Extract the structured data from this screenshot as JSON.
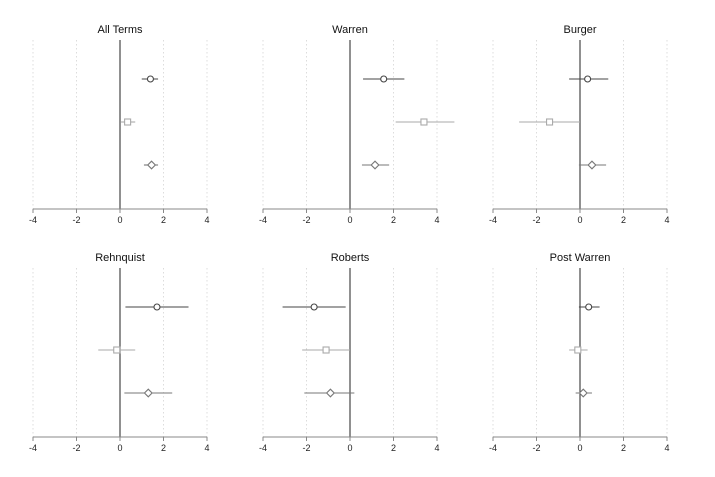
{
  "chart_data": [
    {
      "type": "scatter",
      "title": "All Terms",
      "xlim": [
        -4,
        4
      ],
      "xticks": [
        -4,
        -2,
        0,
        2,
        4
      ],
      "reference_line": 0,
      "grid": "vertical dotted",
      "series": [
        {
          "marker": "circle",
          "color": "#444444",
          "estimate": 1.4,
          "ci": [
            1.0,
            1.75
          ]
        },
        {
          "marker": "square",
          "color": "#aaaaaa",
          "estimate": 0.35,
          "ci": [
            0.05,
            0.7
          ]
        },
        {
          "marker": "diamond",
          "color": "#777777",
          "estimate": 1.45,
          "ci": [
            1.1,
            1.75
          ]
        }
      ]
    },
    {
      "type": "scatter",
      "title": "Warren",
      "xlim": [
        -4,
        4
      ],
      "xticks": [
        -4,
        -2,
        0,
        2,
        4
      ],
      "reference_line": 0,
      "grid": "vertical dotted",
      "series": [
        {
          "marker": "circle",
          "color": "#444444",
          "estimate": 1.55,
          "ci": [
            0.6,
            2.5
          ]
        },
        {
          "marker": "square",
          "color": "#aaaaaa",
          "estimate": 3.4,
          "ci": [
            2.1,
            4.8
          ]
        },
        {
          "marker": "diamond",
          "color": "#777777",
          "estimate": 1.15,
          "ci": [
            0.55,
            1.8
          ]
        }
      ]
    },
    {
      "type": "scatter",
      "title": "Burger",
      "xlim": [
        -4,
        4
      ],
      "xticks": [
        -4,
        -2,
        0,
        2,
        4
      ],
      "reference_line": 0,
      "grid": "vertical dotted",
      "series": [
        {
          "marker": "circle",
          "color": "#444444",
          "estimate": 0.35,
          "ci": [
            -0.5,
            1.3
          ]
        },
        {
          "marker": "square",
          "color": "#aaaaaa",
          "estimate": -1.4,
          "ci": [
            -2.8,
            0.0
          ]
        },
        {
          "marker": "diamond",
          "color": "#777777",
          "estimate": 0.55,
          "ci": [
            -0.05,
            1.2
          ]
        }
      ]
    },
    {
      "type": "scatter",
      "title": "Rehnquist",
      "xlim": [
        -4,
        4
      ],
      "xticks": [
        -4,
        -2,
        0,
        2,
        4
      ],
      "reference_line": 0,
      "grid": "vertical dotted",
      "series": [
        {
          "marker": "circle",
          "color": "#444444",
          "estimate": 1.7,
          "ci": [
            0.25,
            3.15
          ]
        },
        {
          "marker": "square",
          "color": "#aaaaaa",
          "estimate": -0.15,
          "ci": [
            -1.0,
            0.7
          ]
        },
        {
          "marker": "diamond",
          "color": "#777777",
          "estimate": 1.3,
          "ci": [
            0.2,
            2.4
          ]
        }
      ]
    },
    {
      "type": "scatter",
      "title": "Roberts",
      "xlim": [
        -4,
        4
      ],
      "xticks": [
        -4,
        -2,
        0,
        2,
        4
      ],
      "reference_line": 0,
      "grid": "vertical dotted",
      "series": [
        {
          "marker": "circle",
          "color": "#444444",
          "estimate": -1.65,
          "ci": [
            -3.1,
            -0.2
          ]
        },
        {
          "marker": "square",
          "color": "#aaaaaa",
          "estimate": -1.1,
          "ci": [
            -2.2,
            0.0
          ]
        },
        {
          "marker": "diamond",
          "color": "#777777",
          "estimate": -0.9,
          "ci": [
            -2.1,
            0.2
          ]
        }
      ]
    },
    {
      "type": "scatter",
      "title": "Post Warren",
      "xlim": [
        -4,
        4
      ],
      "xticks": [
        -4,
        -2,
        0,
        2,
        4
      ],
      "reference_line": 0,
      "grid": "vertical dotted",
      "series": [
        {
          "marker": "circle",
          "color": "#444444",
          "estimate": 0.4,
          "ci": [
            -0.05,
            0.9
          ]
        },
        {
          "marker": "square",
          "color": "#aaaaaa",
          "estimate": -0.1,
          "ci": [
            -0.5,
            0.35
          ]
        },
        {
          "marker": "diamond",
          "color": "#777777",
          "estimate": 0.15,
          "ci": [
            -0.2,
            0.55
          ]
        }
      ]
    }
  ]
}
